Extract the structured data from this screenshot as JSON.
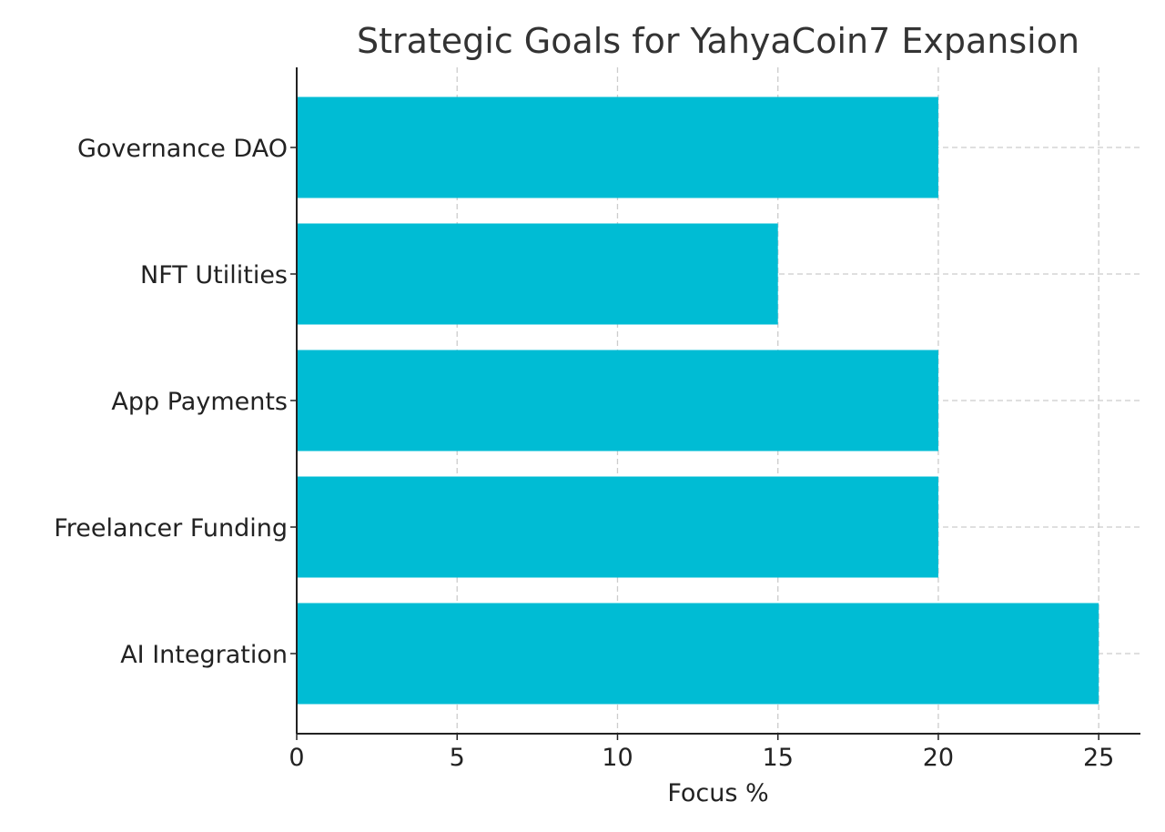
{
  "chart_data": {
    "type": "bar",
    "orientation": "horizontal",
    "title": "Strategic Goals for YahyaCoin7 Expansion",
    "xlabel": "Focus %",
    "ylabel": "",
    "categories": [
      "AI Integration",
      "Freelancer Funding",
      "App Payments",
      "NFT Utilities",
      "Governance DAO"
    ],
    "values": [
      25,
      20,
      20,
      15,
      20
    ],
    "xlim": [
      0,
      26.3
    ],
    "xticks": [
      0,
      5,
      10,
      15,
      20,
      25
    ],
    "grid": true,
    "bar_color": "#00bcd4",
    "legend": "none"
  }
}
